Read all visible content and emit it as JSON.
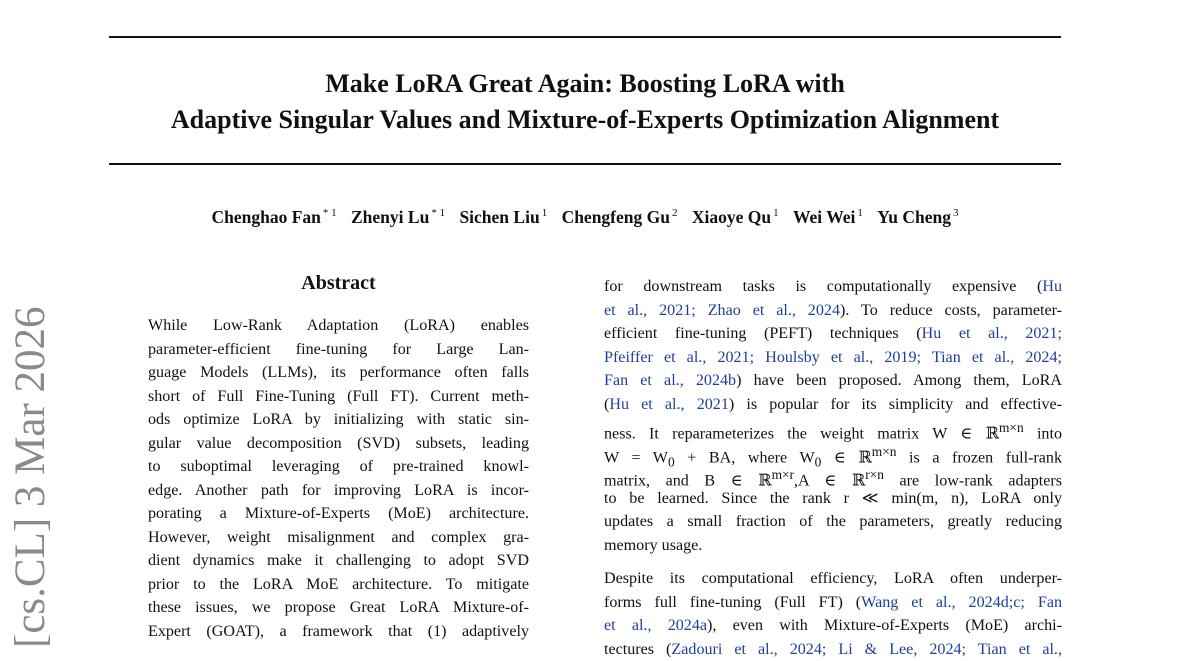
{
  "title": {
    "line1": "Make LoRA Great Again: Boosting LoRA with",
    "line2": "Adaptive Singular Values and Mixture-of-Experts Optimization Alignment"
  },
  "authors": [
    {
      "name": "Chenghao Fan",
      "aff": "* 1"
    },
    {
      "name": "Zhenyi Lu",
      "aff": "* 1"
    },
    {
      "name": "Sichen Liu",
      "aff": "1"
    },
    {
      "name": "Chengfeng Gu",
      "aff": "2"
    },
    {
      "name": "Xiaoye Qu",
      "aff": "1"
    },
    {
      "name": "Wei Wei",
      "aff": "1"
    },
    {
      "name": "Yu Cheng",
      "aff": "3"
    }
  ],
  "arxiv_stamp": "[cs.CL]   3 Mar 2026",
  "abstract": {
    "heading": "Abstract",
    "lines": [
      "While Low-Rank Adaptation (LoRA) enables",
      "parameter-efficient fine-tuning for Large Lan-",
      "guage Models (LLMs), its performance often falls",
      "short of Full Fine-Tuning (Full FT). Current meth-",
      "ods optimize LoRA by initializing with static sin-",
      "gular value decomposition (SVD) subsets, leading",
      "to suboptimal leveraging of pre-trained knowl-",
      "edge. Another path for improving LoRA is incor-",
      "porating a Mixture-of-Experts (MoE) architecture.",
      "However, weight misalignment and complex gra-",
      "dient dynamics make it challenging to adopt SVD",
      "prior to the LoRA MoE architecture. To mitigate",
      "these issues, we propose Great LoRA Mixture-of-",
      "Expert (GOAT), a framework that (1) adaptively"
    ]
  },
  "right_column": {
    "para1": [
      [
        "for downstream tasks is computationally expensive (",
        "Hu"
      ],
      [
        "et al., 2021; Zhao et al., 2024",
        "). To reduce costs, parameter-"
      ],
      [
        "efficient fine-tuning (PEFT) techniques (",
        "Hu et al., 2021;"
      ],
      [
        "Pfeiffer et al., 2021; Houlsby et al., 2019; Tian et al., 2024;",
        ""
      ],
      [
        "Fan et al., 2024b",
        ") have been proposed. Among them, LoRA"
      ],
      [
        "(",
        "Hu et al., 2021",
        ") is popular for its simplicity and effective-"
      ],
      [
        "ness. It reparameterizes the weight matrix W ∈ ℝ",
        "m×n",
        " into"
      ],
      [
        "W = W",
        "0",
        " + BA, where W",
        "0",
        " ∈ ℝ",
        "m×n",
        " is a frozen full-rank"
      ],
      [
        "matrix, and B ∈ ℝ",
        "m×r",
        ",A ∈ ℝ",
        "r×n",
        " are low-rank adapters"
      ],
      [
        "to be learned. Since the rank r ≪ min(m, n), LoRA only"
      ],
      [
        "updates a small fraction of the parameters, greatly reducing"
      ],
      [
        "memory usage."
      ]
    ],
    "para2": [
      [
        "Despite its computational efficiency, LoRA often underper-"
      ],
      [
        "forms full fine-tuning (Full FT) (",
        "Wang et al., 2024d;c; Fan"
      ],
      [
        "et al., 2024a",
        "), even with Mixture-of-Experts (MoE) archi-"
      ],
      [
        "tectures (",
        "Zadouri et al., 2024; Li & Lee, 2024; Tian et al.,"
      ]
    ]
  }
}
